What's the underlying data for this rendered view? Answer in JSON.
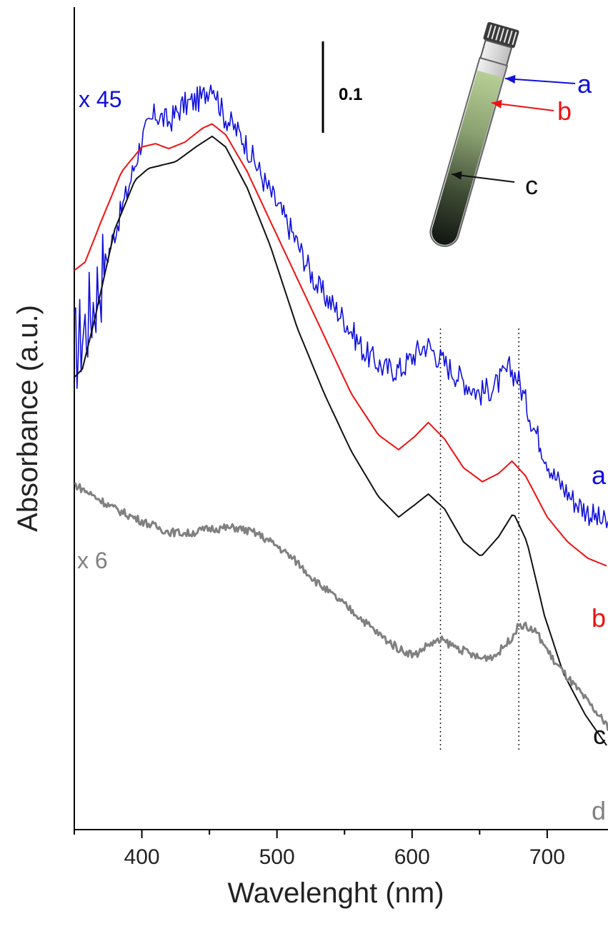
{
  "chart_data": {
    "type": "line",
    "xlabel": "Wavelenght (nm)",
    "ylabel": "Absorbance (a.u.)",
    "xlim": [
      350,
      745
    ],
    "ylim": [
      0,
      1
    ],
    "x_ticks": [
      400,
      500,
      600,
      700
    ],
    "grid": false,
    "scale_bar": {
      "label": "0.1",
      "value": 0.1
    },
    "reference_lines_nm": [
      621,
      679
    ],
    "series": [
      {
        "name": "a",
        "color": "#1010dd",
        "noisy": true,
        "factor": "x 45",
        "x": [
          350,
          360,
          375,
          390,
          400,
          410,
          420,
          430,
          445,
          452,
          460,
          475,
          490,
          510,
          530,
          550,
          565,
          580,
          592,
          603,
          611,
          622,
          635,
          650,
          662,
          672,
          678,
          690,
          705,
          720,
          735,
          745
        ],
        "y": [
          0.58,
          0.62,
          0.7,
          0.78,
          0.84,
          0.87,
          0.86,
          0.88,
          0.89,
          0.91,
          0.87,
          0.84,
          0.79,
          0.73,
          0.66,
          0.62,
          0.58,
          0.56,
          0.56,
          0.58,
          0.59,
          0.57,
          0.55,
          0.53,
          0.54,
          0.56,
          0.55,
          0.49,
          0.43,
          0.4,
          0.38,
          0.37
        ]
      },
      {
        "name": "b",
        "color": "#ee1111",
        "noisy": false,
        "x": [
          350,
          358,
          370,
          385,
          400,
          410,
          420,
          432,
          445,
          452,
          462,
          478,
          495,
          515,
          535,
          555,
          575,
          590,
          602,
          612,
          624,
          638,
          652,
          664,
          674,
          684,
          700,
          715,
          730,
          745
        ],
        "y": [
          0.68,
          0.69,
          0.74,
          0.8,
          0.83,
          0.834,
          0.828,
          0.836,
          0.853,
          0.858,
          0.845,
          0.8,
          0.74,
          0.67,
          0.6,
          0.53,
          0.48,
          0.462,
          0.478,
          0.495,
          0.475,
          0.44,
          0.423,
          0.433,
          0.448,
          0.43,
          0.38,
          0.35,
          0.33,
          0.32
        ]
      },
      {
        "name": "c",
        "color": "#111111",
        "noisy": false,
        "x": [
          350,
          356,
          365,
          380,
          395,
          405,
          415,
          425,
          440,
          452,
          462,
          478,
          495,
          515,
          535,
          555,
          575,
          590,
          602,
          612,
          624,
          638,
          651,
          664,
          675,
          685,
          698,
          712,
          728,
          745
        ],
        "y": [
          0.55,
          0.56,
          0.62,
          0.73,
          0.79,
          0.804,
          0.808,
          0.812,
          0.83,
          0.843,
          0.83,
          0.78,
          0.71,
          0.61,
          0.53,
          0.46,
          0.405,
          0.38,
          0.395,
          0.408,
          0.39,
          0.35,
          0.332,
          0.356,
          0.385,
          0.35,
          0.26,
          0.19,
          0.14,
          0.1
        ]
      },
      {
        "name": "d",
        "color": "#808080",
        "noisy": true,
        "factor": "x 6",
        "x": [
          350,
          365,
          380,
          400,
          420,
          435,
          450,
          470,
          485,
          500,
          515,
          530,
          545,
          560,
          575,
          590,
          602,
          612,
          622,
          635,
          650,
          662,
          672,
          680,
          692,
          705,
          720,
          735,
          745
        ],
        "y": [
          0.42,
          0.405,
          0.39,
          0.375,
          0.362,
          0.36,
          0.366,
          0.367,
          0.36,
          0.345,
          0.325,
          0.3,
          0.28,
          0.26,
          0.238,
          0.22,
          0.212,
          0.225,
          0.23,
          0.22,
          0.208,
          0.212,
          0.23,
          0.25,
          0.24,
          0.205,
          0.175,
          0.145,
          0.125
        ]
      }
    ],
    "inset": {
      "arrows": [
        {
          "label": "a",
          "color": "#1010dd"
        },
        {
          "label": "b",
          "color": "#ee1111"
        },
        {
          "label": "c",
          "color": "#111111"
        }
      ]
    }
  }
}
